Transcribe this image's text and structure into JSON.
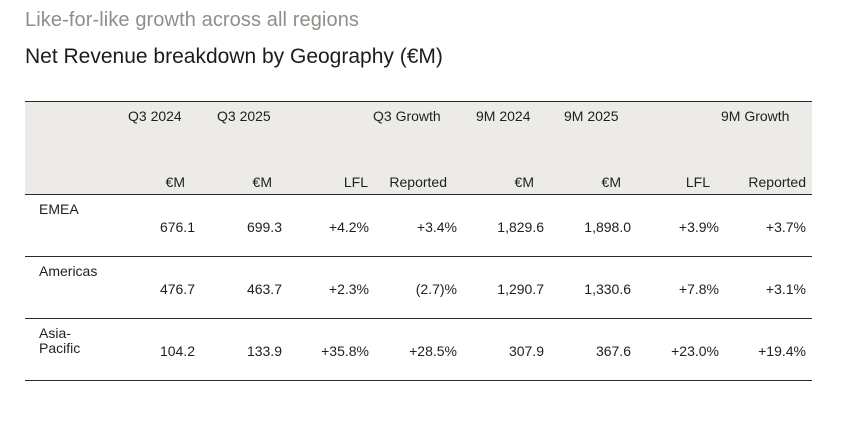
{
  "subtitle": "Like-for-like growth across all regions",
  "title": "Net Revenue breakdown by Geography (€M)",
  "table": {
    "group_headers": [
      "Q3 2024",
      "Q3 2025",
      "Q3 Growth",
      "9M 2024",
      "9M 2025",
      "9M Growth"
    ],
    "sub_headers": [
      "€M",
      "€M",
      "LFL",
      "Reported",
      "€M",
      "€M",
      "LFL",
      "Reported"
    ],
    "rows": [
      {
        "region": "EMEA",
        "values": [
          "676.1",
          "699.3",
          "+4.2%",
          "+3.4%",
          "1,829.6",
          "1,898.0",
          "+3.9%",
          "+3.7%"
        ]
      },
      {
        "region": "Americas",
        "values": [
          "476.7",
          "463.7",
          "+2.3%",
          "(2.7)%",
          "1,290.7",
          "1,330.6",
          "+7.8%",
          "+3.1%"
        ]
      },
      {
        "region": "Asia-\nPacific",
        "values": [
          "104.2",
          "133.9",
          "+35.8%",
          "+28.5%",
          "307.9",
          "367.6",
          "+23.0%",
          "+19.4%"
        ]
      }
    ]
  },
  "colors": {
    "header_bg": "#ecebe8",
    "subtitle": "#8f8f89",
    "rule": "#2a2a2a"
  }
}
